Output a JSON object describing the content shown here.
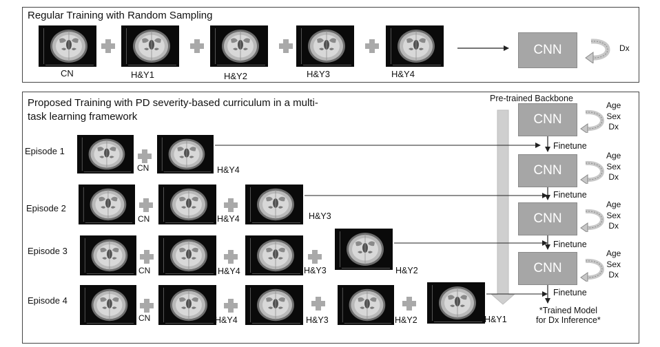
{
  "top_panel": {
    "title": "Regular Training with Random Sampling",
    "brain_labels": [
      "CN",
      "H&Y1",
      "H&Y2",
      "H&Y3",
      "H&Y4"
    ],
    "model_label": "CNN",
    "output_label": "Dx"
  },
  "bottom_panel": {
    "title_line1": "Proposed Training with PD severity-based curriculum in a multi-",
    "title_line2": "task learning framework",
    "backbone_label": "Pre-trained Backbone",
    "model_label": "CNN",
    "heads": [
      "Age",
      "Sex",
      "Dx"
    ],
    "finetune_label": "Finetune",
    "episodes": [
      {
        "label": "Episode 1",
        "stages": [
          "CN",
          "H&Y4"
        ]
      },
      {
        "label": "Episode 2",
        "stages": [
          "CN",
          "H&Y4",
          "H&Y3"
        ]
      },
      {
        "label": "Episode 3",
        "stages": [
          "CN",
          "H&Y4",
          "H&Y3",
          "H&Y2"
        ]
      },
      {
        "label": "Episode 4",
        "stages": [
          "CN",
          "H&Y4",
          "H&Y3",
          "H&Y2",
          "H&Y1"
        ]
      }
    ],
    "trained_model_line1": "*Trained Model",
    "trained_model_line2": "for Dx Inference*"
  },
  "colors": {
    "cnn_box": "#a6a6a6",
    "plus": "#a9a9a9",
    "arrow": "#222222",
    "loop": "#c8c8c8"
  }
}
